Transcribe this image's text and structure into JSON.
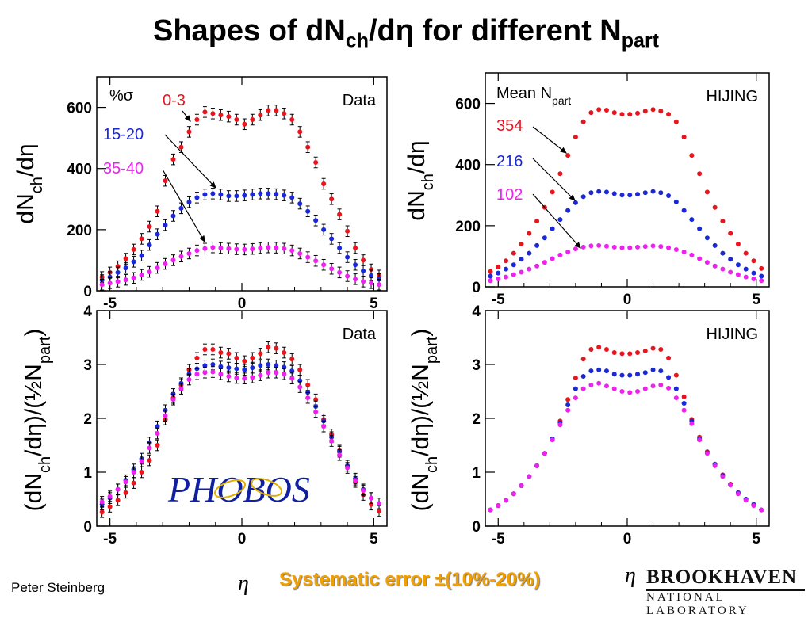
{
  "title": {
    "main": "Shapes of dN",
    "sub1": "ch",
    "mid": "/dη for different N",
    "sub2": "part"
  },
  "author": "Peter Steinberg",
  "systematic_error": "Systematic error ±(10%-20%)",
  "eta_symbol": "η",
  "logo": {
    "line1": "BROOKHAVEN",
    "line2": "NATIONAL LABORATORY",
    "phobos": "PHOBOS"
  },
  "colors": {
    "central": "#e8141e",
    "mid": "#1a28d8",
    "peripheral": "#ee22ee"
  },
  "chart_data": [
    {
      "type": "scatter",
      "corner_label": "Data",
      "legend_title": "%σ",
      "legend": [
        "0-3",
        "15-20",
        "35-40"
      ],
      "ylabel": {
        "a": "dN",
        "b": "ch",
        "c": "/dη"
      },
      "xlim": [
        -5.5,
        5.5
      ],
      "ylim": [
        0,
        700
      ],
      "xticks": [
        -5,
        0,
        5
      ],
      "yticks": [
        0,
        200,
        400,
        600
      ],
      "series": [
        {
          "name": "0-3",
          "x": [
            -5.3,
            -5.0,
            -4.7,
            -4.4,
            -4.1,
            -3.8,
            -3.5,
            -3.2,
            -2.9,
            -2.6,
            -2.3,
            -2.0,
            -1.7,
            -1.4,
            -1.1,
            -0.8,
            -0.5,
            -0.2,
            0.1,
            0.4,
            0.7,
            1.0,
            1.3,
            1.6,
            1.9,
            2.2,
            2.5,
            2.8,
            3.1,
            3.4,
            3.7,
            4.0,
            4.3,
            4.6,
            4.9,
            5.2
          ],
          "y": [
            45,
            60,
            80,
            105,
            135,
            170,
            210,
            260,
            360,
            430,
            470,
            520,
            560,
            585,
            580,
            575,
            570,
            560,
            545,
            560,
            575,
            590,
            590,
            580,
            560,
            520,
            470,
            420,
            350,
            300,
            250,
            195,
            140,
            100,
            70,
            50
          ]
        },
        {
          "name": "15-20",
          "x": [
            -5.3,
            -5.0,
            -4.7,
            -4.4,
            -4.1,
            -3.8,
            -3.5,
            -3.2,
            -2.9,
            -2.6,
            -2.3,
            -2.0,
            -1.7,
            -1.4,
            -1.1,
            -0.8,
            -0.5,
            -0.2,
            0.1,
            0.4,
            0.7,
            1.0,
            1.3,
            1.6,
            1.9,
            2.2,
            2.5,
            2.8,
            3.1,
            3.4,
            3.7,
            4.0,
            4.3,
            4.6,
            4.9,
            5.2
          ],
          "y": [
            35,
            45,
            60,
            75,
            95,
            115,
            150,
            185,
            215,
            245,
            270,
            290,
            305,
            315,
            318,
            315,
            310,
            310,
            312,
            315,
            318,
            318,
            316,
            312,
            305,
            285,
            260,
            230,
            200,
            170,
            140,
            110,
            85,
            65,
            50,
            38
          ]
        },
        {
          "name": "35-40",
          "x": [
            -5.3,
            -5.0,
            -4.7,
            -4.4,
            -4.1,
            -3.8,
            -3.5,
            -3.2,
            -2.9,
            -2.6,
            -2.3,
            -2.0,
            -1.7,
            -1.4,
            -1.1,
            -0.8,
            -0.5,
            -0.2,
            0.1,
            0.4,
            0.7,
            1.0,
            1.3,
            1.6,
            1.9,
            2.2,
            2.5,
            2.8,
            3.1,
            3.4,
            3.7,
            4.0,
            4.3,
            4.6,
            4.9,
            5.2
          ],
          "y": [
            20,
            25,
            30,
            36,
            42,
            52,
            62,
            75,
            88,
            100,
            112,
            122,
            132,
            138,
            142,
            140,
            138,
            136,
            135,
            137,
            140,
            142,
            141,
            138,
            132,
            122,
            110,
            98,
            85,
            72,
            60,
            48,
            38,
            30,
            25,
            20
          ]
        }
      ]
    },
    {
      "type": "scatter",
      "corner_label": "HIJING",
      "legend_title": {
        "a": "Mean N",
        "b": "part"
      },
      "legend": [
        "354",
        "216",
        "102"
      ],
      "ylabel": {
        "a": "dN",
        "b": "ch",
        "c": "/dη"
      },
      "xlim": [
        -5.5,
        5.5
      ],
      "ylim": [
        0,
        700
      ],
      "xticks": [
        -5,
        0,
        5
      ],
      "yticks": [
        0,
        200,
        400,
        600
      ],
      "series": [
        {
          "name": "354",
          "x": [
            -5.3,
            -5.0,
            -4.7,
            -4.4,
            -4.1,
            -3.8,
            -3.5,
            -3.2,
            -2.9,
            -2.6,
            -2.3,
            -2.0,
            -1.7,
            -1.4,
            -1.1,
            -0.8,
            -0.5,
            -0.2,
            0.1,
            0.4,
            0.7,
            1.0,
            1.3,
            1.6,
            1.9,
            2.2,
            2.5,
            2.8,
            3.1,
            3.4,
            3.7,
            4.0,
            4.3,
            4.6,
            4.9,
            5.2
          ],
          "y": [
            50,
            65,
            85,
            110,
            140,
            175,
            215,
            260,
            310,
            370,
            430,
            490,
            540,
            570,
            580,
            578,
            570,
            565,
            565,
            568,
            575,
            580,
            575,
            565,
            540,
            490,
            430,
            370,
            310,
            260,
            215,
            175,
            140,
            110,
            85,
            60
          ]
        },
        {
          "name": "216",
          "x": [
            -5.3,
            -5.0,
            -4.7,
            -4.4,
            -4.1,
            -3.8,
            -3.5,
            -3.2,
            -2.9,
            -2.6,
            -2.3,
            -2.0,
            -1.7,
            -1.4,
            -1.1,
            -0.8,
            -0.5,
            -0.2,
            0.1,
            0.4,
            0.7,
            1.0,
            1.3,
            1.6,
            1.9,
            2.2,
            2.5,
            2.8,
            3.1,
            3.4,
            3.7,
            4.0,
            4.3,
            4.6,
            4.9,
            5.2
          ],
          "y": [
            35,
            45,
            58,
            72,
            90,
            110,
            135,
            160,
            190,
            220,
            250,
            275,
            295,
            308,
            312,
            310,
            305,
            300,
            300,
            303,
            308,
            312,
            308,
            298,
            278,
            250,
            220,
            190,
            160,
            135,
            110,
            90,
            72,
            58,
            45,
            35
          ]
        },
        {
          "name": "102",
          "x": [
            -5.3,
            -5.0,
            -4.7,
            -4.4,
            -4.1,
            -3.8,
            -3.5,
            -3.2,
            -2.9,
            -2.6,
            -2.3,
            -2.0,
            -1.7,
            -1.4,
            -1.1,
            -0.8,
            -0.5,
            -0.2,
            0.1,
            0.4,
            0.7,
            1.0,
            1.3,
            1.6,
            1.9,
            2.2,
            2.5,
            2.8,
            3.1,
            3.4,
            3.7,
            4.0,
            4.3,
            4.6,
            4.9,
            5.2
          ],
          "y": [
            20,
            26,
            32,
            40,
            48,
            58,
            68,
            80,
            92,
            104,
            114,
            124,
            130,
            134,
            135,
            133,
            130,
            128,
            128,
            130,
            132,
            134,
            132,
            128,
            122,
            114,
            104,
            92,
            80,
            68,
            58,
            48,
            40,
            32,
            26,
            20
          ]
        }
      ]
    },
    {
      "type": "scatter",
      "corner_label": "Data",
      "ylabel": {
        "a": "(dN",
        "b": "ch",
        "c": "/dη)/(½N",
        "d": "part",
        "e": ")"
      },
      "xlim": [
        -5.5,
        5.5
      ],
      "ylim": [
        0,
        4
      ],
      "xticks": [
        -5,
        0,
        5
      ],
      "yticks": [
        0,
        1,
        2,
        3,
        4
      ],
      "series": [
        {
          "name": "0-3",
          "x": [
            -5.3,
            -5.0,
            -4.7,
            -4.4,
            -4.1,
            -3.8,
            -3.5,
            -3.2,
            -2.9,
            -2.6,
            -2.3,
            -2.0,
            -1.7,
            -1.4,
            -1.1,
            -0.8,
            -0.5,
            -0.2,
            0.1,
            0.4,
            0.7,
            1.0,
            1.3,
            1.6,
            1.9,
            2.2,
            2.5,
            2.8,
            3.1,
            3.4,
            3.7,
            4.0,
            4.3,
            4.6,
            4.9,
            5.2
          ],
          "y": [
            0.26,
            0.36,
            0.48,
            0.62,
            0.8,
            1.0,
            1.22,
            1.5,
            1.98,
            2.38,
            2.62,
            2.9,
            3.12,
            3.28,
            3.28,
            3.22,
            3.2,
            3.12,
            3.06,
            3.12,
            3.2,
            3.32,
            3.3,
            3.22,
            3.1,
            2.9,
            2.62,
            2.35,
            1.98,
            1.7,
            1.4,
            1.12,
            0.82,
            0.58,
            0.4,
            0.28
          ]
        },
        {
          "name": "15-20",
          "x": [
            -5.3,
            -5.0,
            -4.7,
            -4.4,
            -4.1,
            -3.8,
            -3.5,
            -3.2,
            -2.9,
            -2.6,
            -2.3,
            -2.0,
            -1.7,
            -1.4,
            -1.1,
            -0.8,
            -0.5,
            -0.2,
            0.1,
            0.4,
            0.7,
            1.0,
            1.3,
            1.6,
            1.9,
            2.2,
            2.5,
            2.8,
            3.1,
            3.4,
            3.7,
            4.0,
            4.3,
            4.6,
            4.9,
            5.2
          ],
          "y": [
            0.4,
            0.52,
            0.68,
            0.85,
            1.05,
            1.25,
            1.55,
            1.85,
            2.15,
            2.45,
            2.65,
            2.82,
            2.92,
            2.98,
            3.0,
            2.96,
            2.94,
            2.92,
            2.9,
            2.94,
            2.98,
            3.0,
            2.98,
            2.95,
            2.88,
            2.7,
            2.48,
            2.22,
            1.95,
            1.65,
            1.38,
            1.12,
            0.88,
            0.68,
            0.52,
            0.42
          ]
        },
        {
          "name": "35-40",
          "x": [
            -5.3,
            -5.0,
            -4.7,
            -4.4,
            -4.1,
            -3.8,
            -3.5,
            -3.2,
            -2.9,
            -2.6,
            -2.3,
            -2.0,
            -1.7,
            -1.4,
            -1.1,
            -0.8,
            -0.5,
            -0.2,
            0.1,
            0.4,
            0.7,
            1.0,
            1.3,
            1.6,
            1.9,
            2.2,
            2.5,
            2.8,
            3.1,
            3.4,
            3.7,
            4.0,
            4.3,
            4.6,
            4.9,
            5.2
          ],
          "y": [
            0.45,
            0.55,
            0.68,
            0.82,
            1.0,
            1.2,
            1.45,
            1.72,
            2.05,
            2.35,
            2.55,
            2.72,
            2.82,
            2.85,
            2.86,
            2.82,
            2.78,
            2.75,
            2.74,
            2.76,
            2.8,
            2.85,
            2.85,
            2.82,
            2.74,
            2.58,
            2.38,
            2.12,
            1.85,
            1.58,
            1.32,
            1.08,
            0.85,
            0.66,
            0.52,
            0.42
          ]
        }
      ]
    },
    {
      "type": "scatter",
      "corner_label": "HIJING",
      "ylabel": {
        "a": "(dN",
        "b": "ch",
        "c": "/dη)/(½N",
        "d": "part",
        "e": ")"
      },
      "xlim": [
        -5.5,
        5.5
      ],
      "ylim": [
        0,
        4
      ],
      "xticks": [
        -5,
        0,
        5
      ],
      "yticks": [
        0,
        1,
        2,
        3,
        4
      ],
      "series": [
        {
          "name": "354",
          "x": [
            -5.3,
            -5.0,
            -4.7,
            -4.4,
            -4.1,
            -3.8,
            -3.5,
            -3.2,
            -2.9,
            -2.6,
            -2.3,
            -2.0,
            -1.7,
            -1.4,
            -1.1,
            -0.8,
            -0.5,
            -0.2,
            0.1,
            0.4,
            0.7,
            1.0,
            1.3,
            1.6,
            1.9,
            2.2,
            2.5,
            2.8,
            3.1,
            3.4,
            3.7,
            4.0,
            4.3,
            4.6,
            4.9,
            5.2
          ],
          "y": [
            0.3,
            0.38,
            0.48,
            0.6,
            0.75,
            0.92,
            1.12,
            1.35,
            1.62,
            1.95,
            2.35,
            2.75,
            3.1,
            3.28,
            3.32,
            3.28,
            3.22,
            3.2,
            3.2,
            3.22,
            3.25,
            3.3,
            3.28,
            3.12,
            2.8,
            2.4,
            1.98,
            1.65,
            1.38,
            1.15,
            0.95,
            0.78,
            0.62,
            0.5,
            0.4,
            0.3
          ]
        },
        {
          "name": "216",
          "x": [
            -5.3,
            -5.0,
            -4.7,
            -4.4,
            -4.1,
            -3.8,
            -3.5,
            -3.2,
            -2.9,
            -2.6,
            -2.3,
            -2.0,
            -1.7,
            -1.4,
            -1.1,
            -0.8,
            -0.5,
            -0.2,
            0.1,
            0.4,
            0.7,
            1.0,
            1.3,
            1.6,
            1.9,
            2.2,
            2.5,
            2.8,
            3.1,
            3.4,
            3.7,
            4.0,
            4.3,
            4.6,
            4.9,
            5.2
          ],
          "y": [
            0.3,
            0.38,
            0.48,
            0.6,
            0.75,
            0.92,
            1.12,
            1.35,
            1.62,
            1.92,
            2.25,
            2.55,
            2.78,
            2.88,
            2.9,
            2.88,
            2.82,
            2.8,
            2.8,
            2.82,
            2.85,
            2.9,
            2.88,
            2.76,
            2.55,
            2.28,
            1.95,
            1.62,
            1.36,
            1.14,
            0.94,
            0.77,
            0.62,
            0.5,
            0.4,
            0.3
          ]
        },
        {
          "name": "102",
          "x": [
            -5.3,
            -5.0,
            -4.7,
            -4.4,
            -4.1,
            -3.8,
            -3.5,
            -3.2,
            -2.9,
            -2.6,
            -2.3,
            -2.0,
            -1.7,
            -1.4,
            -1.1,
            -0.8,
            -0.5,
            -0.2,
            0.1,
            0.4,
            0.7,
            1.0,
            1.3,
            1.6,
            1.9,
            2.2,
            2.5,
            2.8,
            3.1,
            3.4,
            3.7,
            4.0,
            4.3,
            4.6,
            4.9,
            5.2
          ],
          "y": [
            0.3,
            0.38,
            0.48,
            0.6,
            0.75,
            0.92,
            1.12,
            1.35,
            1.6,
            1.88,
            2.15,
            2.38,
            2.55,
            2.62,
            2.65,
            2.6,
            2.55,
            2.5,
            2.48,
            2.5,
            2.55,
            2.6,
            2.62,
            2.56,
            2.38,
            2.15,
            1.9,
            1.6,
            1.35,
            1.12,
            0.92,
            0.76,
            0.6,
            0.48,
            0.38,
            0.3
          ]
        }
      ]
    }
  ]
}
